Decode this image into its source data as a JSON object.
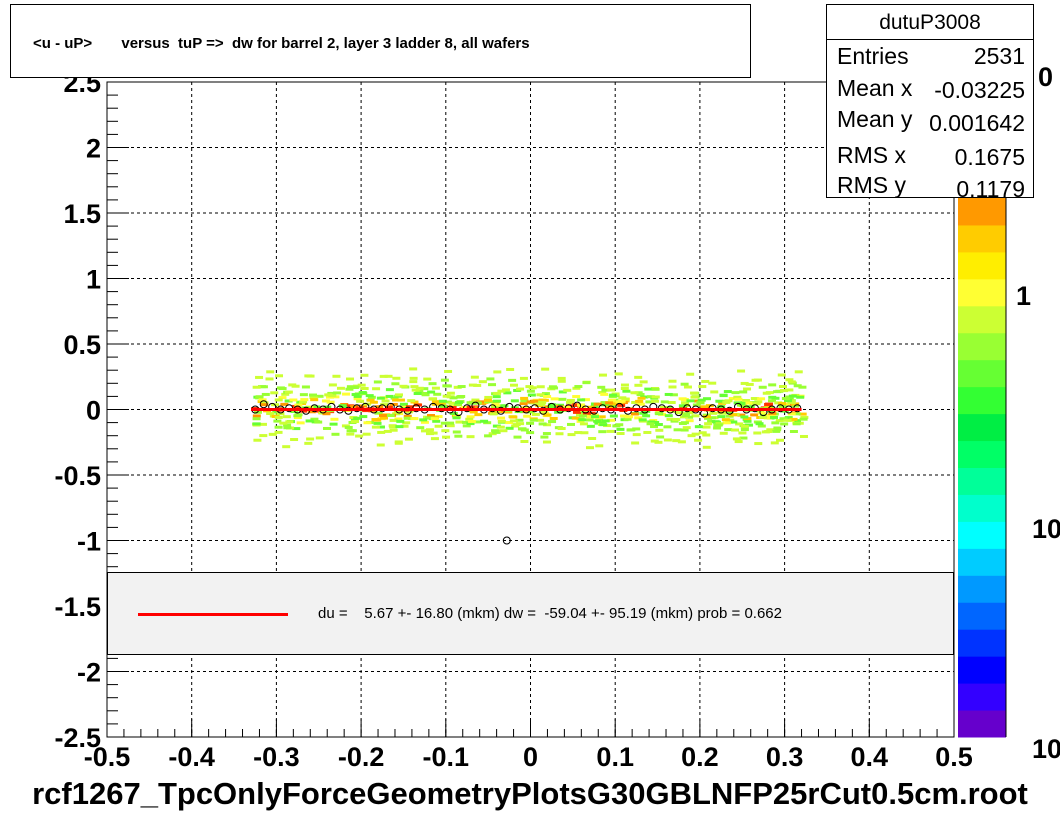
{
  "title": "<u - uP>       versus  tuP =>  dw for barrel 2, layer 3 ladder 8, all wafers",
  "footer": "rcf1267_TpcOnlyForceGeometryPlotsG30GBLNFP25rCut0.5cm.root",
  "stats": {
    "name": "dutuP3008",
    "rows": [
      {
        "label": "Entries",
        "value": "2531"
      },
      {
        "label": "Mean x",
        "value": "-0.03225"
      },
      {
        "label": "Mean y",
        "value": "0.001642"
      },
      {
        "label": "RMS x",
        "value": "0.1675"
      },
      {
        "label": "RMS y",
        "value": "0.1179"
      }
    ]
  },
  "legend": {
    "text": "du =    5.67 +- 16.80 (mkm) dw =  -59.04 +- 95.19 (mkm) prob = 0.662",
    "line_color": "#ff0000"
  },
  "colors": {
    "fit_line": "#ff0000",
    "profile_marker": "#000000",
    "grid": "#000000"
  },
  "chart_data": {
    "type": "heatmap",
    "title": "<u - uP>       versus  tuP =>  dw for barrel 2, layer 3 ladder 8, all wafers",
    "xlabel": "",
    "ylabel": "",
    "xlim": [
      -0.5,
      0.5
    ],
    "ylim": [
      -2.5,
      2.5
    ],
    "x_ticks": [
      "-0.5",
      "-0.4",
      "-0.3",
      "-0.2",
      "-0.1",
      "0",
      "0.1",
      "0.2",
      "0.3",
      "0.4",
      "0.5"
    ],
    "y_ticks": [
      "-2.5",
      "-2",
      "-1.5",
      "-1",
      "-0.5",
      "0",
      "0.5",
      "1",
      "1.5",
      "2",
      "2.5"
    ],
    "grid": true,
    "colorbar_labels": [
      "0",
      "1",
      "10",
      "10"
    ],
    "colorbar_colors": [
      "#6600cc",
      "#3300ff",
      "#0000ff",
      "#0033ff",
      "#0066ff",
      "#0099ff",
      "#00ccff",
      "#00ffff",
      "#00ffcc",
      "#00ff99",
      "#00ff66",
      "#00ee44",
      "#33ff33",
      "#66ff33",
      "#99ff33",
      "#ccff33",
      "#ffff33",
      "#ffee00",
      "#ffcc00",
      "#ff9900"
    ],
    "occupied_x_range": [
      -0.33,
      0.32
    ],
    "occupied_y_range": [
      -0.45,
      0.45
    ],
    "fit_line": {
      "x": [
        -0.33,
        0.32
      ],
      "y": [
        0.0,
        0.0
      ]
    },
    "profile_points": {
      "x": [
        -0.325,
        -0.315,
        -0.305,
        -0.295,
        -0.285,
        -0.275,
        -0.265,
        -0.255,
        -0.245,
        -0.235,
        -0.225,
        -0.215,
        -0.205,
        -0.195,
        -0.185,
        -0.175,
        -0.165,
        -0.155,
        -0.145,
        -0.135,
        -0.125,
        -0.115,
        -0.105,
        -0.095,
        -0.085,
        -0.075,
        -0.065,
        -0.055,
        -0.045,
        -0.035,
        -0.025,
        -0.015,
        -0.005,
        0.005,
        0.015,
        0.025,
        0.035,
        0.045,
        0.055,
        0.065,
        0.075,
        0.085,
        0.095,
        0.105,
        0.115,
        0.125,
        0.135,
        0.145,
        0.155,
        0.165,
        0.175,
        0.185,
        0.195,
        0.205,
        0.215,
        0.225,
        0.235,
        0.245,
        0.255,
        0.265,
        0.275,
        0.285,
        0.295,
        0.305,
        0.315,
        -0.028
      ],
      "y": [
        0.0,
        0.04,
        0.02,
        0.0,
        0.01,
        0.0,
        -0.01,
        0.01,
        0.0,
        0.02,
        0.0,
        -0.01,
        0.01,
        0.02,
        0.0,
        0.01,
        0.02,
        0.0,
        -0.01,
        0.01,
        0.0,
        0.02,
        0.01,
        0.0,
        -0.02,
        0.01,
        0.03,
        0.0,
        0.01,
        -0.01,
        0.02,
        0.01,
        0.0,
        0.01,
        -0.01,
        0.02,
        0.0,
        0.01,
        0.03,
        0.0,
        -0.01,
        0.01,
        0.0,
        0.02,
        -0.01,
        0.01,
        0.0,
        0.02,
        0.01,
        0.0,
        -0.02,
        0.01,
        0.0,
        -0.03,
        0.01,
        0.0,
        -0.01,
        0.02,
        0.0,
        0.01,
        -0.02,
        0.0,
        0.01,
        0.0,
        0.01,
        -1.0
      ]
    }
  }
}
